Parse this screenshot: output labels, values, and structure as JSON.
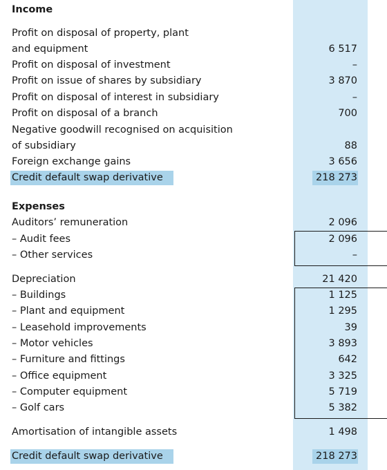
{
  "income": {
    "heading": "Income",
    "rows": [
      {
        "label_lines": [
          "Profit on disposal of property, plant",
          "and equipment"
        ],
        "value": "6 517"
      },
      {
        "label_lines": [
          "Profit on disposal of investment"
        ],
        "value": "–"
      },
      {
        "label_lines": [
          "Profit on issue of shares by subsidiary"
        ],
        "value": "3 870"
      },
      {
        "label_lines": [
          "Profit on disposal of interest in subsidiary"
        ],
        "value": "–"
      },
      {
        "label_lines": [
          "Profit on disposal of a branch"
        ],
        "value": "700"
      },
      {
        "label_lines": [
          "Negative goodwill recognised on acquisition",
          "of subsidiary"
        ],
        "value": "88"
      },
      {
        "label_lines": [
          "Foreign exchange gains"
        ],
        "value": "3 656"
      },
      {
        "label_lines": [
          "Credit default swap derivative"
        ],
        "value": "218 273",
        "highlight": true
      }
    ]
  },
  "expenses": {
    "heading": "Expenses",
    "auditors": {
      "label": "Auditors’ remuneration",
      "value": "2 096",
      "items": [
        {
          "label": "– Audit fees",
          "value": "2 096"
        },
        {
          "label": "– Other services",
          "value": "–"
        }
      ]
    },
    "depreciation": {
      "label": "Depreciation",
      "value": "21 420",
      "items": [
        {
          "label": "– Buildings",
          "value": "1 125"
        },
        {
          "label": "– Plant and equipment",
          "value": "1 295"
        },
        {
          "label": "– Leasehold improvements",
          "value": "39"
        },
        {
          "label": "– Motor vehicles",
          "value": "3 893"
        },
        {
          "label": "– Furniture and fittings",
          "value": "642"
        },
        {
          "label": "– Office equipment",
          "value": "3 325"
        },
        {
          "label": "– Computer equipment",
          "value": "5 719"
        },
        {
          "label": "– Golf cars",
          "value": "5 382"
        }
      ]
    },
    "amortisation": {
      "label": "Amortisation of intangible assets",
      "value": "1 498"
    },
    "credit_default": {
      "label": "Credit default swap derivative",
      "value": "218 273",
      "highlight": true
    }
  }
}
